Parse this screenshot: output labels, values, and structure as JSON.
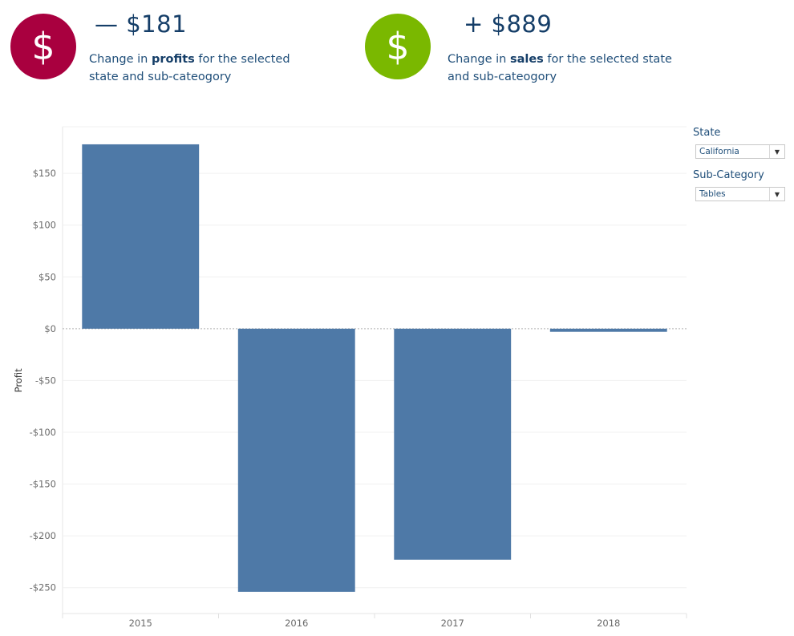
{
  "kpis": {
    "profit": {
      "icon": "dollar-icon",
      "symbol": "$",
      "color": "#a9003f",
      "value": "— $181",
      "desc_prefix": "Change in ",
      "desc_bold": "profits",
      "desc_suffix_line1": " for the selected",
      "desc_line2": "state and sub-cateogory"
    },
    "sales": {
      "icon": "dollar-icon",
      "symbol": "$",
      "color": "#7ab800",
      "value": "+ $889",
      "desc_prefix": "Change in ",
      "desc_bold": "sales",
      "desc_suffix_line1": " for the selected state",
      "desc_line2": "and sub-cateogory"
    }
  },
  "filters": {
    "state": {
      "label": "State",
      "value": "California"
    },
    "subcategory": {
      "label": "Sub-Category",
      "value": "Tables"
    }
  },
  "chart_data": {
    "type": "bar",
    "categories": [
      "2015",
      "2016",
      "2017",
      "2018"
    ],
    "values": [
      178,
      -254,
      -223,
      -3
    ],
    "ylabel": "Profit",
    "xlabel": "",
    "ylim": [
      -275,
      195
    ],
    "yticks": [
      150,
      100,
      50,
      0,
      -50,
      -100,
      -150,
      -200,
      -250
    ],
    "ytick_labels": [
      "$150",
      "$100",
      "$50",
      "$0",
      "-$50",
      "-$100",
      "-$150",
      "-$200",
      "-$250"
    ],
    "bar_color": "#4e79a7",
    "grid": true
  }
}
